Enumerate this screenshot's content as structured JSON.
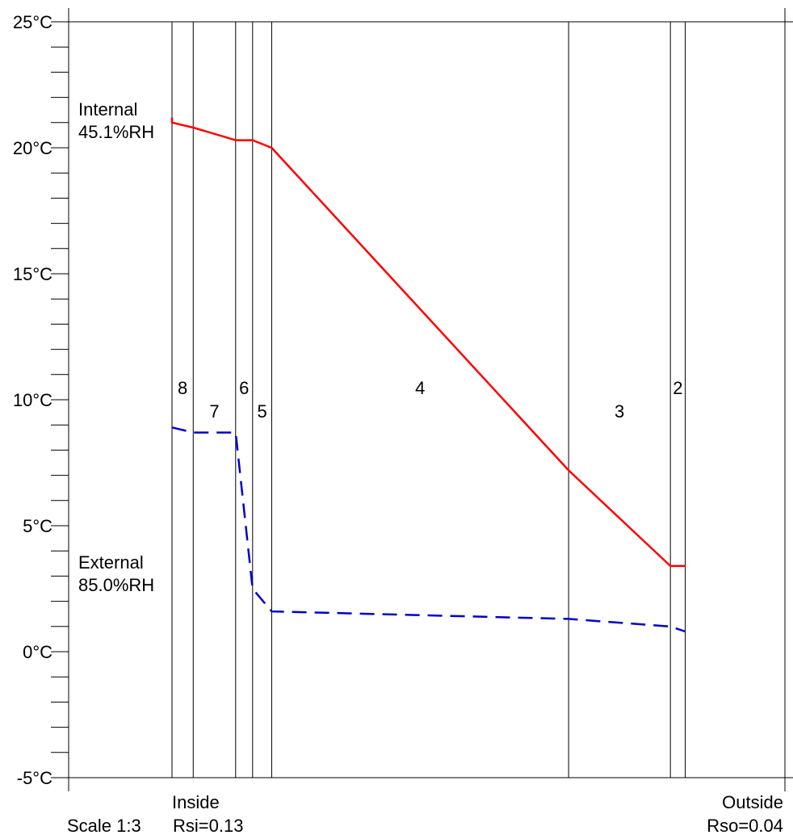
{
  "chart_data": {
    "type": "line",
    "y_unit": "°C",
    "ylim": [
      -5,
      25
    ],
    "y_major_ticks": [
      25,
      20,
      15,
      10,
      5,
      0,
      -5
    ],
    "y_major_labels": [
      "25°C",
      "20°C",
      "15°C",
      "10°C",
      "5°C",
      "0°C",
      "-5°C"
    ],
    "y_minor_step": 1,
    "x_unit": "mm",
    "xlim": [
      0,
      289
    ],
    "layer_boundaries": [
      0,
      10,
      30,
      38,
      47,
      187,
      235,
      242
    ],
    "layers": [
      {
        "label": "8",
        "from": 0,
        "to": 10,
        "label_level": "upper"
      },
      {
        "label": "7",
        "from": 10,
        "to": 30,
        "label_level": "lower"
      },
      {
        "label": "6",
        "from": 30,
        "to": 38,
        "label_level": "upper"
      },
      {
        "label": "5",
        "from": 38,
        "to": 47,
        "label_level": "lower"
      },
      {
        "label": "4",
        "from": 47,
        "to": 187,
        "label_level": "upper"
      },
      {
        "label": "3",
        "from": 187,
        "to": 235,
        "label_level": "lower"
      },
      {
        "label": "2",
        "from": 235,
        "to": 242,
        "label_level": "upper"
      }
    ],
    "series": [
      {
        "color": "#ff0000",
        "style": "solid",
        "x": [
          0,
          0,
          10,
          30,
          38,
          47,
          187,
          235,
          242
        ],
        "y": [
          21.2,
          21.0,
          20.8,
          20.3,
          20.3,
          20.0,
          7.2,
          3.4,
          3.4
        ]
      },
      {
        "color": "#0000cc",
        "style": "dashed",
        "x": [
          0,
          10,
          30,
          38,
          47,
          187,
          235,
          242
        ],
        "y": [
          8.9,
          8.7,
          8.7,
          2.5,
          1.6,
          1.3,
          1.0,
          0.8
        ]
      }
    ],
    "annotations": {
      "internal_title": "Internal",
      "internal_rh": "45.1%RH",
      "external_title": "External",
      "external_rh": "85.0%RH",
      "inside": "Inside",
      "outside": "Outside",
      "scale": "Scale 1:3",
      "rsi": "Rsi=0.13",
      "rso": "Rso=0.04"
    }
  }
}
